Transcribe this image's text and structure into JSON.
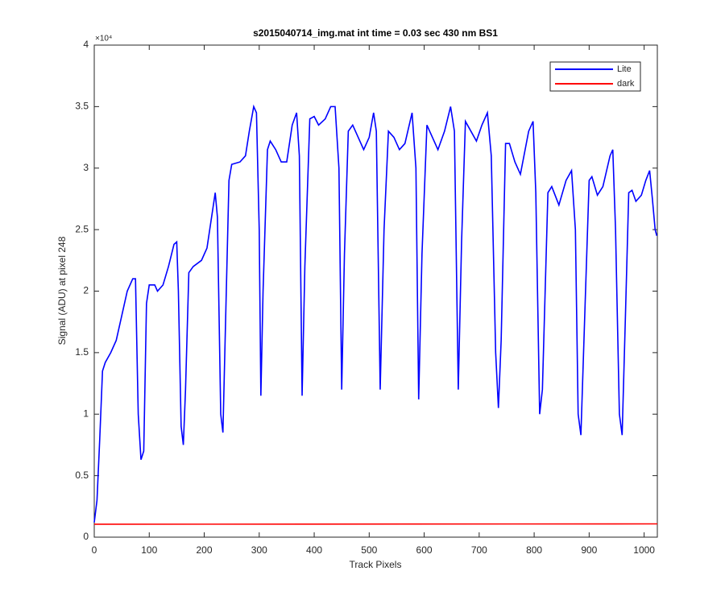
{
  "chart_data": {
    "type": "line",
    "title": "s2015040714_img.mat int time = 0.03 sec  430 nm BS1",
    "x_label": "Track Pixels",
    "y_label": "Signal (ADU) at pixel 248",
    "y_multiplier": "×10⁴",
    "xlim": [
      0,
      1024
    ],
    "ylim": [
      0,
      4
    ],
    "xticks": [
      0,
      100,
      200,
      300,
      400,
      500,
      600,
      700,
      800,
      900,
      1000
    ],
    "yticks": [
      0,
      0.5,
      1,
      1.5,
      2,
      2.5,
      3,
      3.5,
      4
    ],
    "grid": false,
    "legend": "top-right",
    "series": [
      {
        "name": "Lite",
        "color": "#0000ff",
        "x": [
          0,
          5,
          10,
          15,
          20,
          30,
          40,
          50,
          60,
          70,
          75,
          80,
          85,
          90,
          95,
          100,
          110,
          115,
          125,
          135,
          145,
          150,
          153,
          158,
          162,
          166,
          172,
          180,
          195,
          205,
          215,
          220,
          224,
          230,
          234,
          238,
          245,
          250,
          265,
          275,
          282,
          290,
          295,
          300,
          303,
          307,
          315,
          320,
          330,
          340,
          350,
          360,
          368,
          373,
          378,
          383,
          392,
          400,
          408,
          420,
          430,
          438,
          445,
          450,
          455,
          462,
          470,
          480,
          490,
          500,
          508,
          513,
          520,
          527,
          535,
          545,
          555,
          565,
          578,
          585,
          590,
          596,
          605,
          615,
          625,
          637,
          648,
          655,
          662,
          668,
          675,
          685,
          695,
          705,
          715,
          722,
          730,
          735,
          740,
          748,
          755,
          765,
          775,
          790,
          798,
          803,
          810,
          815,
          825,
          832,
          845,
          858,
          868,
          875,
          880,
          885,
          892,
          900,
          905,
          915,
          925,
          938,
          943,
          948,
          955,
          960,
          966,
          972,
          978,
          985,
          995,
          1003,
          1010,
          1015,
          1020,
          1023
        ],
        "values": [
          0.12,
          0.3,
          0.8,
          1.35,
          1.42,
          1.5,
          1.6,
          1.8,
          2.0,
          2.1,
          2.1,
          1.0,
          0.63,
          0.7,
          1.9,
          2.05,
          2.05,
          2.0,
          2.05,
          2.2,
          2.38,
          2.4,
          2.0,
          0.9,
          0.75,
          1.2,
          2.15,
          2.2,
          2.25,
          2.35,
          2.65,
          2.8,
          2.6,
          1.0,
          0.85,
          1.6,
          2.9,
          3.03,
          3.05,
          3.1,
          3.3,
          3.5,
          3.45,
          2.5,
          1.15,
          2.0,
          3.15,
          3.22,
          3.15,
          3.05,
          3.05,
          3.35,
          3.45,
          3.1,
          1.15,
          2.2,
          3.4,
          3.42,
          3.35,
          3.4,
          3.5,
          3.5,
          3.0,
          1.2,
          2.3,
          3.3,
          3.35,
          3.25,
          3.15,
          3.25,
          3.45,
          3.3,
          1.2,
          2.5,
          3.3,
          3.25,
          3.15,
          3.2,
          3.45,
          3.0,
          1.12,
          2.3,
          3.35,
          3.25,
          3.15,
          3.3,
          3.5,
          3.3,
          1.2,
          2.4,
          3.38,
          3.3,
          3.22,
          3.35,
          3.45,
          3.1,
          1.5,
          1.05,
          1.6,
          3.2,
          3.2,
          3.05,
          2.95,
          3.3,
          3.38,
          2.8,
          1.0,
          1.2,
          2.8,
          2.85,
          2.7,
          2.9,
          2.98,
          2.5,
          1.0,
          0.83,
          1.8,
          2.9,
          2.93,
          2.78,
          2.85,
          3.1,
          3.15,
          2.5,
          1.0,
          0.83,
          1.8,
          2.8,
          2.82,
          2.73,
          2.78,
          2.9,
          2.98,
          2.75,
          2.5,
          2.45
        ]
      },
      {
        "name": "dark",
        "color": "#ff0000",
        "x": [
          0,
          1024
        ],
        "values": [
          0.105,
          0.108
        ]
      }
    ]
  }
}
